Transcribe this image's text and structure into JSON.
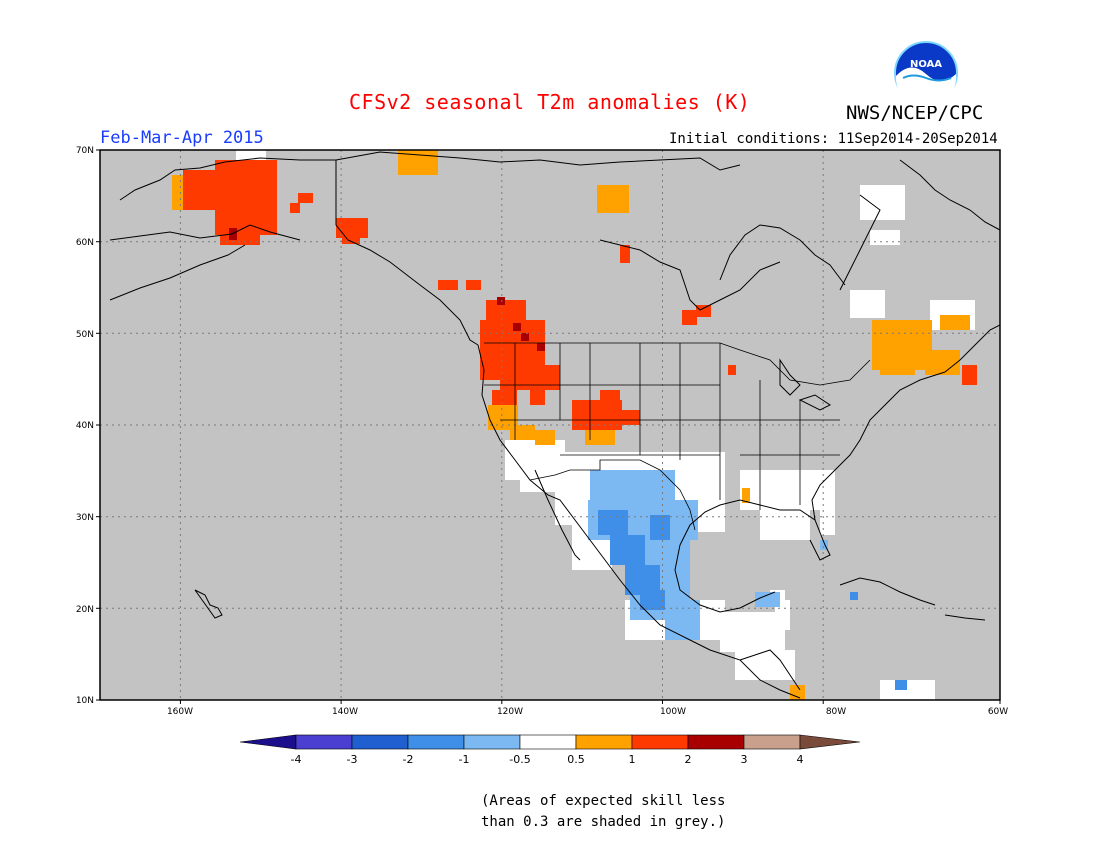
{
  "header": {
    "title": "CFSv2 seasonal T2m anomalies (K)",
    "season": "Feb-Mar-Apr 2015",
    "initial_conditions": "Initial conditions: 11Sep2014-20Sep2014",
    "agency": "NWS/NCEP/CPC",
    "logo_text": "NOAA"
  },
  "map": {
    "lat_labels": [
      "70N",
      "60N",
      "50N",
      "40N",
      "30N",
      "20N",
      "10N"
    ],
    "lon_labels": [
      "160W",
      "140W",
      "120W",
      "100W",
      "80W",
      "60W"
    ],
    "extent": {
      "lon": [
        -172,
        -60
      ],
      "lat": [
        10,
        70
      ]
    }
  },
  "colorbar": {
    "labels": [
      "-4",
      "-3",
      "-2",
      "-1",
      "-0.5",
      "0.5",
      "1",
      "2",
      "3",
      "4"
    ],
    "colors": {
      "below_-4": "#1c0f8e",
      "-4_-3": "#4b3fd2",
      "-3_-2": "#1f5fcf",
      "-2_-1": "#3f8ee8",
      "-1_-0.5": "#7cb9f2",
      "-0.5_0.5": "#ffffff",
      "0.5_1": "#ffa200",
      "1_2": "#ff3a00",
      "2_3": "#a80000",
      "3_4": "#c9a08c",
      "above_4": "#7a4b3a"
    }
  },
  "footnote": {
    "line1": "(Areas of expected skill less",
    "line2": "than 0.3 are shaded in grey.)"
  },
  "colors": {
    "no_skill": "#c3c3c3",
    "title": "#ff0000",
    "season": "#1a3cff",
    "coast": "#000000"
  }
}
